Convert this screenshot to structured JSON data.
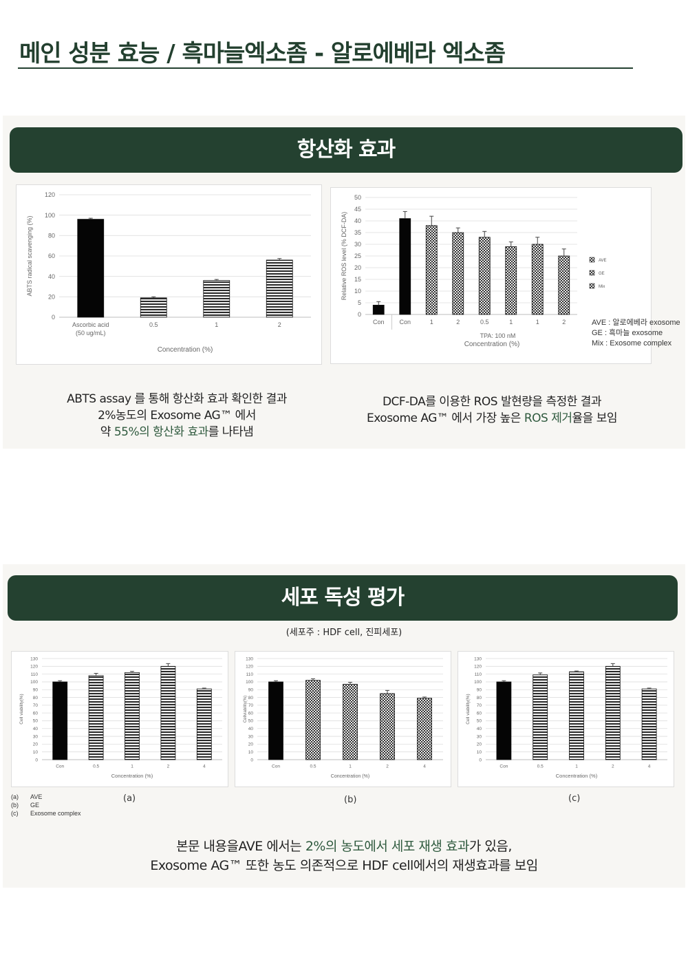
{
  "header": {
    "title": "메인 성분 효능 / 흑마늘엑소좀 - 알로에베라 엑소좀"
  },
  "sections": {
    "antioxidant": {
      "banner": "항산화 효과",
      "abts_caption": {
        "line1": "ABTS assay 를 통해 항산화 효과 확인한 결과",
        "line2": "2%농도의 Exosome AG™ 에서",
        "line3_pre": "약 ",
        "line3_hl": "55%의 항산화 효과",
        "line3_post": "를 나타냄"
      },
      "dcf_caption": {
        "line1": "DCF-DA를 이용한 ROS 발현량을 측정한 결과",
        "line2_pre": "Exosome AG™ 에서 가장 높은 ",
        "line2_hl": "ROS 제거",
        "line2_post": "율을 보임"
      },
      "legend_notes": [
        "AVE : 알로에베라 exosome",
        "GE : 흑마늘 exosome",
        "Mix : Exosome complex"
      ]
    },
    "cytotoxicity": {
      "banner": "세포 독성 평가",
      "host_note": "(세포주 : HDF cell, 진피세포)",
      "panel_labels": [
        "(a)",
        "(b)",
        "(c)"
      ],
      "abc_legend": [
        {
          "key": "(a)",
          "label": "AVE"
        },
        {
          "key": "(b)",
          "label": "GE"
        },
        {
          "key": "(c)",
          "label": "Exosome complex"
        }
      ],
      "caption": {
        "line1_pre": "본문 내용을AVE 에서는 ",
        "line1_hl": "2%의 농도에서 세포 재생 효과",
        "line1_post": "가 있음,",
        "line2": "Exosome AG™ 또한 농도 의존적으로 HDF cell에서의 재생효과를 보임"
      }
    }
  },
  "chart_data": [
    {
      "id": "abts",
      "type": "bar",
      "ylabel": "ABTS radical scavenging (%)",
      "xlabel": "Concentration (%)",
      "ylim": [
        0,
        120
      ],
      "yticks": [
        0,
        20,
        40,
        60,
        80,
        100,
        120
      ],
      "categories": [
        "Ascorbic acid\n(50 ug/mL)",
        "0.5",
        "1",
        "2"
      ],
      "values": [
        96,
        19,
        36,
        56
      ],
      "errors": [
        1,
        1,
        1,
        1.5
      ],
      "patterns": [
        "solid",
        "hstripe",
        "hstripe",
        "hstripe"
      ]
    },
    {
      "id": "dcf",
      "type": "bar",
      "ylabel": "Relative ROS level (% DCF-DA)",
      "xlabel": "Concentration (%)",
      "xnote": "TPA: 100 nM",
      "ylim": [
        0,
        50
      ],
      "yticks": [
        0,
        5,
        10,
        15,
        20,
        25,
        30,
        35,
        40,
        45,
        50
      ],
      "categories": [
        "Con",
        "Con",
        "1",
        "2",
        "0.5",
        "1",
        "1",
        "2"
      ],
      "values": [
        4,
        41,
        38,
        35,
        33,
        29,
        30,
        25
      ],
      "errors": [
        1.5,
        3,
        4,
        2,
        2.5,
        2,
        3,
        3
      ],
      "patterns": [
        "solid",
        "solid",
        "check",
        "check",
        "check",
        "check",
        "check",
        "check"
      ],
      "legend": [
        "AVE",
        "GE",
        "Mix"
      ]
    },
    {
      "id": "cyto-a",
      "type": "bar",
      "ylabel": "Cell viability(%)",
      "xlabel": "Concentration (%)",
      "ylim": [
        0,
        130
      ],
      "yticks": [
        0,
        10,
        20,
        30,
        40,
        50,
        60,
        70,
        80,
        90,
        100,
        110,
        120,
        130
      ],
      "categories": [
        "Con",
        "0.5",
        "1",
        "2",
        "4"
      ],
      "values": [
        100,
        108,
        112,
        120,
        91
      ],
      "errors": [
        1.5,
        3,
        1.5,
        3.5,
        1
      ],
      "patterns": [
        "solid",
        "hstripe",
        "hstripe",
        "hstripe",
        "hstripe"
      ]
    },
    {
      "id": "cyto-b",
      "type": "bar",
      "ylabel": "Cellviability(%)",
      "xlabel": "Concentration (%)",
      "ylim": [
        0,
        130
      ],
      "yticks": [
        0,
        10,
        20,
        30,
        40,
        50,
        60,
        70,
        80,
        90,
        100,
        110,
        120,
        130
      ],
      "categories": [
        "Con",
        "0.5",
        "1",
        "2",
        "4"
      ],
      "values": [
        100,
        102,
        97,
        85,
        79
      ],
      "errors": [
        1.5,
        2,
        2.5,
        4,
        1.5
      ],
      "patterns": [
        "solid",
        "check",
        "check",
        "check",
        "check"
      ]
    },
    {
      "id": "cyto-c",
      "type": "bar",
      "ylabel": "Cell viability(%)",
      "xlabel": "Concentration (%)",
      "ylim": [
        0,
        130
      ],
      "yticks": [
        0,
        10,
        20,
        30,
        40,
        50,
        60,
        70,
        80,
        90,
        100,
        110,
        120,
        130
      ],
      "categories": [
        "Con",
        "0.5",
        "1",
        "2",
        "4"
      ],
      "values": [
        100,
        109,
        113,
        120,
        91
      ],
      "errors": [
        1.5,
        2.5,
        1,
        3.5,
        1
      ],
      "patterns": [
        "solid",
        "hstripe",
        "hstripe",
        "hstripe",
        "hstripe"
      ]
    }
  ]
}
